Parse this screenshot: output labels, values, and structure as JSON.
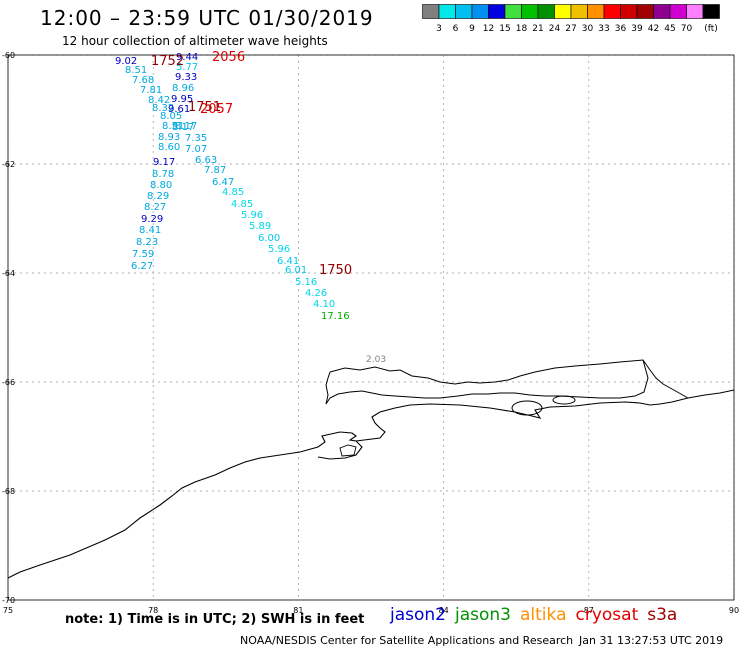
{
  "header": {
    "title": "12:00 – 23:59 UTC 01/30/2019",
    "subtitle": "12 hour collection of altimeter wave heights"
  },
  "colorbar": {
    "unit": "(ft)",
    "bins": [
      {
        "label": "",
        "color": "#808080"
      },
      {
        "label": "3",
        "color": "#00e8e8"
      },
      {
        "label": "6",
        "color": "#00c0f0"
      },
      {
        "label": "9",
        "color": "#0090f0"
      },
      {
        "label": "12",
        "color": "#0000e0"
      },
      {
        "label": "15",
        "color": "#40e040"
      },
      {
        "label": "18",
        "color": "#00c000"
      },
      {
        "label": "21",
        "color": "#009000"
      },
      {
        "label": "24",
        "color": "#ffff00"
      },
      {
        "label": "27",
        "color": "#f0c000"
      },
      {
        "label": "30",
        "color": "#ff9000"
      },
      {
        "label": "33",
        "color": "#ff0000"
      },
      {
        "label": "36",
        "color": "#d00000"
      },
      {
        "label": "39",
        "color": "#a00000"
      },
      {
        "label": "42",
        "color": "#900090"
      },
      {
        "label": "45",
        "color": "#d000d0"
      },
      {
        "label": "70",
        "color": "#ff80ff"
      },
      {
        "label": "",
        "color": "#000000"
      }
    ]
  },
  "map": {
    "lon_range": [
      75,
      90
    ],
    "lat_range": [
      -70,
      -60
    ],
    "x_ticks": [
      "75",
      "78",
      "81",
      "84",
      "87",
      "90"
    ],
    "y_ticks": [
      "-60",
      "-62",
      "-64",
      "-66",
      "-68",
      "-70"
    ],
    "track_a": [
      {
        "v": "9.02",
        "c": "#0000c0"
      },
      {
        "v": "8.51",
        "c": "#00a8e0"
      },
      {
        "v": "7.68",
        "c": "#00a8e0"
      },
      {
        "v": "7.81",
        "c": "#00a8e0"
      },
      {
        "v": "8.42",
        "c": "#00a8e0"
      },
      {
        "v": "8.32",
        "c": "#00a8e0"
      },
      {
        "v": "8.05",
        "c": "#00a8e0"
      },
      {
        "v": "8.51",
        "c": "#00a8e0"
      },
      {
        "v": "8.93",
        "c": "#00a8e0"
      },
      {
        "v": "8.60",
        "c": "#00a8e0"
      },
      {
        "v": "9.17",
        "c": "#0000c0"
      },
      {
        "v": "8.78",
        "c": "#00a8e0"
      },
      {
        "v": "8.80",
        "c": "#00a8e0"
      },
      {
        "v": "8.29",
        "c": "#00a8e0"
      },
      {
        "v": "8.27",
        "c": "#00a8e0"
      },
      {
        "v": "9.29",
        "c": "#0000c0"
      },
      {
        "v": "8.41",
        "c": "#00a8e0"
      },
      {
        "v": "8.23",
        "c": "#00a8e0"
      },
      {
        "v": "7.59",
        "c": "#00a8e0"
      },
      {
        "v": "6.27",
        "c": "#00a8e0"
      }
    ],
    "track_b": [
      {
        "v": "9.44",
        "c": "#0000c0"
      },
      {
        "v": "5.77",
        "c": "#00c8e8"
      },
      {
        "v": "9.33",
        "c": "#0000c0"
      },
      {
        "v": "8.96",
        "c": "#00a8e0"
      },
      {
        "v": "9.95",
        "c": "#0000c0"
      },
      {
        "v": "9.61",
        "c": "#0000c0"
      },
      {
        "v": "8.17",
        "c": "#00a8e0"
      },
      {
        "v": "8.17",
        "c": "#00a8e0"
      },
      {
        "v": "7.35",
        "c": "#00a8e0"
      },
      {
        "v": "7.07",
        "c": "#00a8e0"
      },
      {
        "v": "6.63",
        "c": "#00a8e0"
      },
      {
        "v": "7.87",
        "c": "#00a8e0"
      },
      {
        "v": "6.47",
        "c": "#00a8e0"
      },
      {
        "v": "4.85",
        "c": "#00d8e8"
      },
      {
        "v": "4.85",
        "c": "#00d8e8"
      },
      {
        "v": "5.96",
        "c": "#00d8e8"
      },
      {
        "v": "5.89",
        "c": "#00d8e8"
      },
      {
        "v": "6.00",
        "c": "#00c8e8"
      },
      {
        "v": "5.96",
        "c": "#00d8e8"
      },
      {
        "v": "6.41",
        "c": "#00c8e8"
      },
      {
        "v": "6.01",
        "c": "#00c8e8"
      },
      {
        "v": "5.16",
        "c": "#00d8e8"
      },
      {
        "v": "4.26",
        "c": "#00d8e8"
      },
      {
        "v": "4.10",
        "c": "#00d8e8"
      },
      {
        "v": "17.16",
        "c": "#00b000"
      }
    ],
    "time_labels": [
      {
        "t": "1752",
        "c": "#900000"
      },
      {
        "t": "2056",
        "c": "#e00000"
      },
      {
        "t": "1751",
        "c": "#900000"
      },
      {
        "t": "2057",
        "c": "#e00000"
      },
      {
        "t": "1750",
        "c": "#900000"
      }
    ],
    "coast_label": "2.03"
  },
  "footer": {
    "note": "note:  1) Time is in UTC;  2) SWH is in feet",
    "satellites": [
      {
        "name": "jason2",
        "color": "#0000d0"
      },
      {
        "name": "jason3",
        "color": "#009000"
      },
      {
        "name": "altika",
        "color": "#ff9000"
      },
      {
        "name": "cryosat",
        "color": "#e00000"
      },
      {
        "name": "s3a",
        "color": "#a00000"
      }
    ],
    "credit": "NOAA/NESDIS Center for Satellite Applications and Research",
    "timestamp": "Jan 31 13:27:53 UTC 2019"
  }
}
